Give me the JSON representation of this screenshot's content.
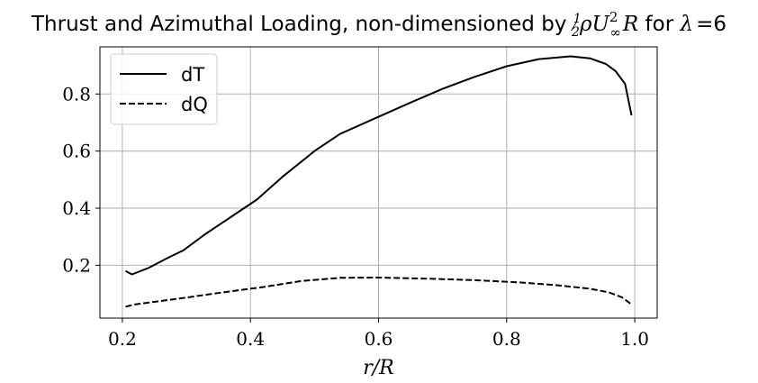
{
  "chart_data": {
    "type": "line",
    "title": {
      "prefix": "Thrust and Azimuthal Loading, non-dimensioned by ",
      "half_num": "1",
      "half_den": "2",
      "rho": "ρ",
      "u": "U",
      "u_sup": "2",
      "u_sub": "∞",
      "r": "R",
      "for_text": " for ",
      "lambda": "λ",
      "equals": "=",
      "lambda_value": "6"
    },
    "xlabel": "r/R",
    "ylabel": "",
    "xlim": [
      0.165,
      1.035
    ],
    "ylim": [
      0.015,
      0.965
    ],
    "xticks": [
      0.2,
      0.4,
      0.6,
      0.8,
      1.0
    ],
    "xtick_labels": [
      "0.2",
      "0.4",
      "0.6",
      "0.8",
      "1.0"
    ],
    "yticks": [
      0.2,
      0.4,
      0.6,
      0.8
    ],
    "ytick_labels": [
      "0.2",
      "0.4",
      "0.6",
      "0.8"
    ],
    "grid": true,
    "legend_position": "top-left",
    "series": [
      {
        "name": "dT",
        "style": "solid",
        "color": "#000000",
        "x": [
          0.205,
          0.215,
          0.24,
          0.27,
          0.295,
          0.33,
          0.37,
          0.41,
          0.45,
          0.5,
          0.54,
          0.6,
          0.65,
          0.7,
          0.75,
          0.8,
          0.85,
          0.9,
          0.93,
          0.955,
          0.97,
          0.985,
          0.995
        ],
        "y": [
          0.18,
          0.168,
          0.19,
          0.225,
          0.252,
          0.31,
          0.37,
          0.43,
          0.51,
          0.6,
          0.66,
          0.72,
          0.77,
          0.818,
          0.86,
          0.897,
          0.922,
          0.932,
          0.925,
          0.905,
          0.88,
          0.835,
          0.725
        ]
      },
      {
        "name": "dQ",
        "style": "dashed",
        "color": "#000000",
        "x": [
          0.205,
          0.22,
          0.26,
          0.3,
          0.35,
          0.42,
          0.48,
          0.54,
          0.6,
          0.68,
          0.75,
          0.82,
          0.88,
          0.93,
          0.96,
          0.98,
          0.995
        ],
        "y": [
          0.055,
          0.063,
          0.075,
          0.087,
          0.103,
          0.124,
          0.145,
          0.156,
          0.157,
          0.153,
          0.148,
          0.14,
          0.13,
          0.118,
          0.105,
          0.088,
          0.063
        ]
      }
    ]
  }
}
